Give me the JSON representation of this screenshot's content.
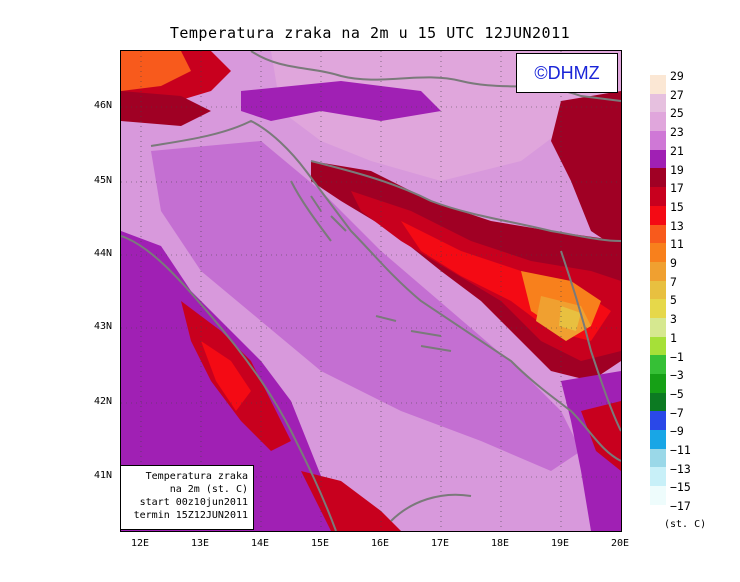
{
  "title": "Temperatura zraka na 2m u 15 UTC 12JUN2011",
  "logo": "©DHMZ",
  "infobox": {
    "line1": "Temperatura zraka",
    "line2": "na 2m (st. C)",
    "line3": "start 00z10jun2011",
    "line4": "termin 15Z12JUN2011"
  },
  "lat_labels": [
    "46N",
    "45N",
    "44N",
    "43N",
    "42N",
    "41N"
  ],
  "lon_labels": [
    "12E",
    "13E",
    "14E",
    "15E",
    "16E",
    "17E",
    "18E",
    "19E",
    "20E"
  ],
  "legend": {
    "labels": [
      "29",
      "27",
      "25",
      "23",
      "21",
      "19",
      "17",
      "15",
      "13",
      "11",
      "9",
      "7",
      "5",
      "3",
      "1",
      "−1",
      "−3",
      "−5",
      "−7",
      "−9",
      "−11",
      "−13",
      "−15",
      "−17"
    ],
    "colors": [
      "#fbe7d4",
      "#e6c0df",
      "#e0a6dc",
      "#cf78d6",
      "#a020b4",
      "#a00024",
      "#c8001e",
      "#f40a14",
      "#f85a1c",
      "#f8801c",
      "#f0a030",
      "#e8c040",
      "#e6d84a",
      "#d6e890",
      "#a6e038",
      "#36c036",
      "#16a016",
      "#0c7a22",
      "#2a48e8",
      "#18a6e6",
      "#9ad8e8",
      "#c8f0f8",
      "#eefcfc"
    ],
    "units": "(st. C)"
  },
  "colors": {
    "sea": "#d899dc",
    "land_warm": "#a020b4",
    "coast": "#7a7a7a"
  }
}
